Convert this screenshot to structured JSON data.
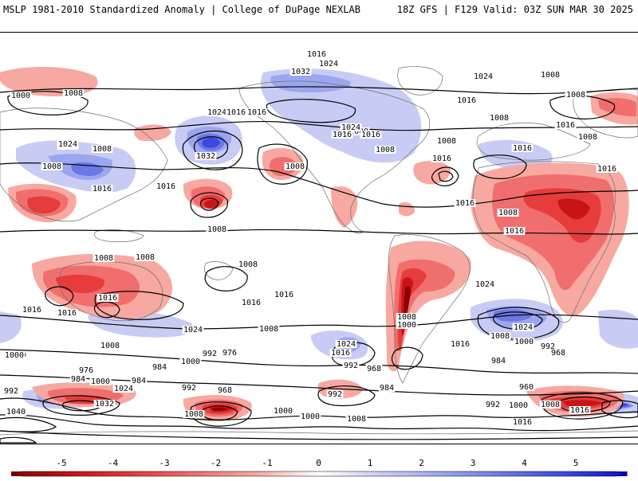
{
  "header": {
    "left": "MSLP 1981-2010 Standardized Anomaly | College of DuPage NEXLAB",
    "right": "18Z GFS | F129 Valid: 03Z SUN MAR 30 2025"
  },
  "colorbar": {
    "ticks": [
      "-5",
      "-4",
      "-3",
      "-2",
      "-1",
      "0",
      "1",
      "2",
      "3",
      "4",
      "5"
    ],
    "colors": [
      "#8b0000",
      "#c81414",
      "#e63c3c",
      "#f06e6e",
      "#f7a8a0",
      "#ffffff",
      "#c8ccf4",
      "#9ca6ee",
      "#6c78e6",
      "#3c48e0",
      "#1010c8"
    ]
  },
  "isobar_labels": [
    {
      "text": "1016"
    },
    {
      "text": "1024"
    },
    {
      "text": "1000"
    },
    {
      "text": "1008"
    },
    {
      "text": "1032"
    },
    {
      "text": "1024"
    },
    {
      "text": "1016"
    },
    {
      "text": "1008"
    },
    {
      "text": "1024"
    },
    {
      "text": "1016"
    },
    {
      "text": "1016"
    },
    {
      "text": "1032"
    },
    {
      "text": "1024"
    },
    {
      "text": "1008"
    },
    {
      "text": "1024"
    },
    {
      "text": "1008"
    },
    {
      "text": "1016"
    },
    {
      "text": "1016"
    },
    {
      "text": "1008"
    },
    {
      "text": "1000"
    },
    {
      "text": "1016"
    },
    {
      "text": "1016"
    },
    {
      "text": "1008"
    },
    {
      "text": "1008"
    },
    {
      "text": "1024"
    },
    {
      "text": "1016"
    },
    {
      "text": "1008"
    },
    {
      "text": "1008"
    },
    {
      "text": "1016"
    },
    {
      "text": "1016"
    },
    {
      "text": "1016"
    },
    {
      "text": "1008"
    },
    {
      "text": "1008"
    },
    {
      "text": "1016"
    },
    {
      "text": "1016"
    },
    {
      "text": "1008"
    },
    {
      "text": "1008"
    },
    {
      "text": "1008"
    },
    {
      "text": "1008"
    },
    {
      "text": "1016"
    },
    {
      "text": "1016"
    },
    {
      "text": "1016"
    },
    {
      "text": "1024"
    },
    {
      "text": "1016"
    },
    {
      "text": "1016"
    },
    {
      "text": "1024"
    },
    {
      "text": "1024"
    },
    {
      "text": "1024"
    },
    {
      "text": "1008"
    },
    {
      "text": "1008"
    },
    {
      "text": "1000"
    },
    {
      "text": "1016"
    },
    {
      "text": "1016"
    },
    {
      "text": "1008"
    },
    {
      "text": "1000"
    },
    {
      "text": "992"
    },
    {
      "text": "1008"
    },
    {
      "text": "1000"
    },
    {
      "text": "992"
    },
    {
      "text": "976"
    },
    {
      "text": "968"
    },
    {
      "text": "1000"
    },
    {
      "text": "992"
    },
    {
      "text": "984"
    },
    {
      "text": "968"
    },
    {
      "text": "984"
    },
    {
      "text": "976"
    },
    {
      "text": "1000"
    },
    {
      "text": "984"
    },
    {
      "text": "968"
    },
    {
      "text": "992"
    },
    {
      "text": "992"
    },
    {
      "text": "984"
    },
    {
      "text": "984"
    },
    {
      "text": "960"
    },
    {
      "text": "992"
    },
    {
      "text": "1024"
    },
    {
      "text": "1032"
    },
    {
      "text": "1040"
    },
    {
      "text": "1000"
    },
    {
      "text": "1008"
    },
    {
      "text": "1000"
    },
    {
      "text": "1000"
    },
    {
      "text": "1008"
    },
    {
      "text": "992"
    },
    {
      "text": "1000"
    },
    {
      "text": "1008"
    },
    {
      "text": "1016"
    },
    {
      "text": "1016"
    }
  ]
}
